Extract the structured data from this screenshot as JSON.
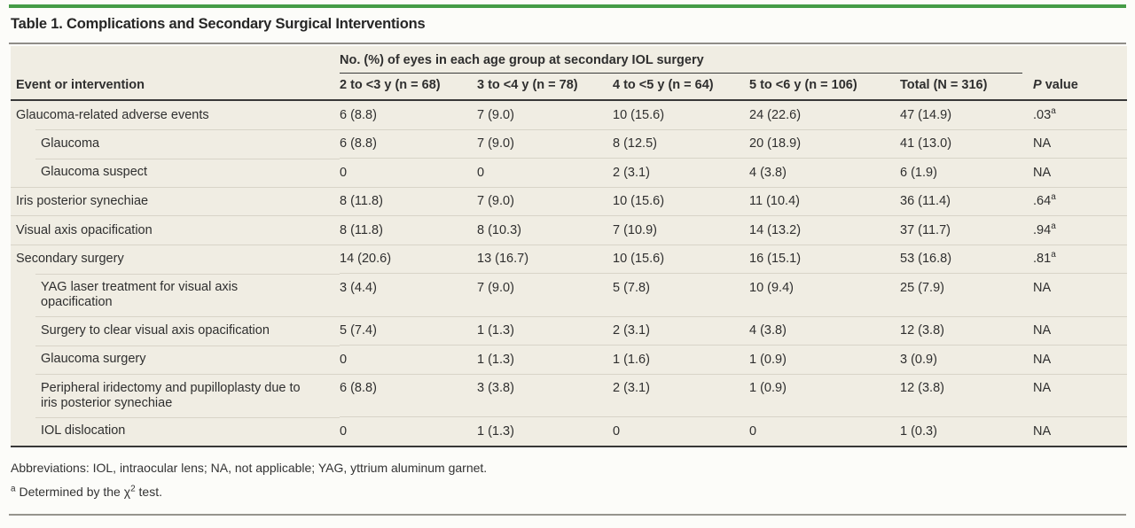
{
  "colors": {
    "accent_green": "#459c47",
    "table_background": "#f0ede3",
    "row_separator": "#d8d4c8",
    "heavy_rule": "#383838"
  },
  "title": "Table 1. Complications and Secondary Surgical Interventions",
  "table": {
    "spanner": "No. (%) of eyes in each age group at secondary IOL surgery",
    "row_header": "Event or intervention",
    "p_header_italic": "P",
    "p_header_rest": " value",
    "age_columns": [
      "2 to <3 y (n = 68)",
      "3 to <4 y (n = 78)",
      "4 to <5 y (n = 64)",
      "5 to <6 y (n = 106)",
      "Total (N = 316)"
    ],
    "rows": [
      {
        "label": "Glaucoma-related adverse events",
        "indent": false,
        "values": [
          "6 (8.8)",
          "7 (9.0)",
          "10 (15.6)",
          "24 (22.6)",
          "47 (14.9)"
        ],
        "p": ".03",
        "p_marker": "a"
      },
      {
        "label": "Glaucoma",
        "indent": true,
        "values": [
          "6 (8.8)",
          "7 (9.0)",
          "8 (12.5)",
          "20 (18.9)",
          "41 (13.0)"
        ],
        "p": "NA",
        "p_marker": ""
      },
      {
        "label": "Glaucoma suspect",
        "indent": true,
        "values": [
          "0",
          "0",
          "2 (3.1)",
          "4 (3.8)",
          "6 (1.9)"
        ],
        "p": "NA",
        "p_marker": ""
      },
      {
        "label": "Iris posterior synechiae",
        "indent": false,
        "values": [
          "8 (11.8)",
          "7 (9.0)",
          "10 (15.6)",
          "11 (10.4)",
          "36 (11.4)"
        ],
        "p": ".64",
        "p_marker": "a"
      },
      {
        "label": "Visual axis opacification",
        "indent": false,
        "values": [
          "8 (11.8)",
          "8 (10.3)",
          "7 (10.9)",
          "14 (13.2)",
          "37 (11.7)"
        ],
        "p": ".94",
        "p_marker": "a"
      },
      {
        "label": "Secondary surgery",
        "indent": false,
        "values": [
          "14 (20.6)",
          "13 (16.7)",
          "10 (15.6)",
          "16 (15.1)",
          "53 (16.8)"
        ],
        "p": ".81",
        "p_marker": "a"
      },
      {
        "label": "YAG laser treatment for visual axis opacification",
        "indent": true,
        "values": [
          "3 (4.4)",
          "7 (9.0)",
          "5 (7.8)",
          "10 (9.4)",
          "25 (7.9)"
        ],
        "p": "NA",
        "p_marker": ""
      },
      {
        "label": "Surgery to clear visual axis opacification",
        "indent": true,
        "values": [
          "5 (7.4)",
          "1 (1.3)",
          "2 (3.1)",
          "4 (3.8)",
          "12 (3.8)"
        ],
        "p": "NA",
        "p_marker": ""
      },
      {
        "label": "Glaucoma surgery",
        "indent": true,
        "values": [
          "0",
          "1 (1.3)",
          "1 (1.6)",
          "1 (0.9)",
          "3 (0.9)"
        ],
        "p": "NA",
        "p_marker": ""
      },
      {
        "label": "Peripheral iridectomy and pupilloplasty due to iris posterior synechiae",
        "indent": true,
        "values": [
          "6 (8.8)",
          "3 (3.8)",
          "2 (3.1)",
          "1 (0.9)",
          "12 (3.8)"
        ],
        "p": "NA",
        "p_marker": ""
      },
      {
        "label": "IOL dislocation",
        "indent": true,
        "values": [
          "0",
          "1 (1.3)",
          "0",
          "0",
          "1 (0.3)"
        ],
        "p": "NA",
        "p_marker": ""
      }
    ]
  },
  "footnotes": {
    "abbreviations": "Abbreviations: IOL, intraocular lens; NA, not applicable; YAG, yttrium aluminum garnet.",
    "note_a": {
      "marker": "a",
      "before": " Determined by the χ",
      "sup": "2",
      "after": " test."
    }
  }
}
